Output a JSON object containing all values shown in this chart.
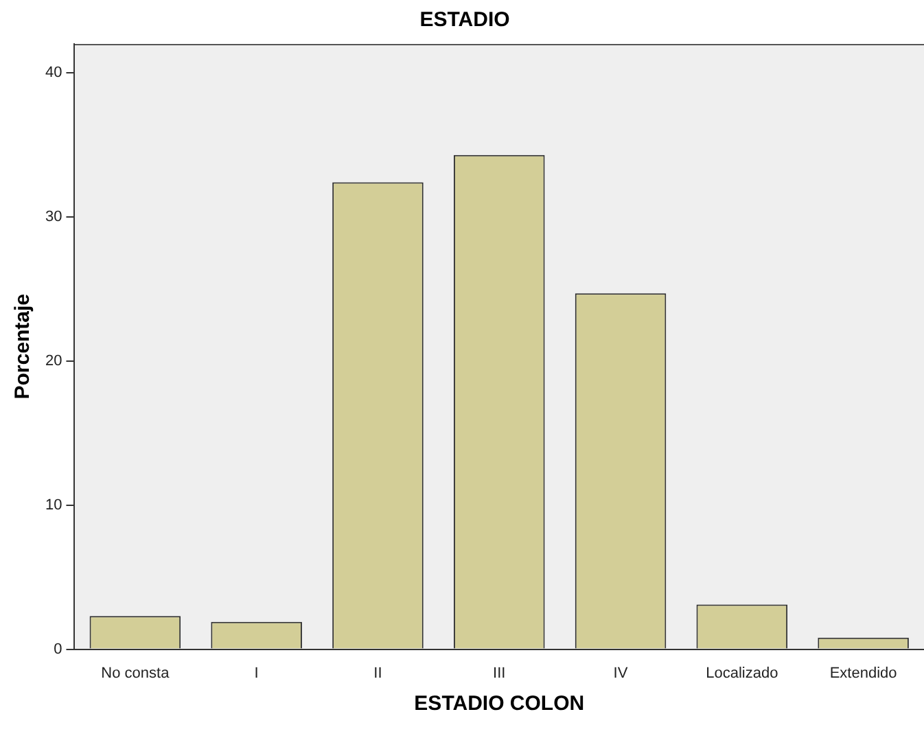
{
  "chart_data": {
    "type": "bar",
    "title": "ESTADIO",
    "xlabel": "ESTADIO COLON",
    "ylabel": "Porcentaje",
    "categories": [
      "No consta",
      "I",
      "II",
      "III",
      "IV",
      "Localizado",
      "Extendido"
    ],
    "values": [
      2.3,
      1.9,
      32.4,
      34.3,
      24.7,
      3.1,
      0.8
    ],
    "color": "#d3ce97",
    "ylim": [
      0,
      42
    ],
    "yticks": [
      0,
      10,
      20,
      30,
      40
    ],
    "grid": false,
    "legend": false
  }
}
